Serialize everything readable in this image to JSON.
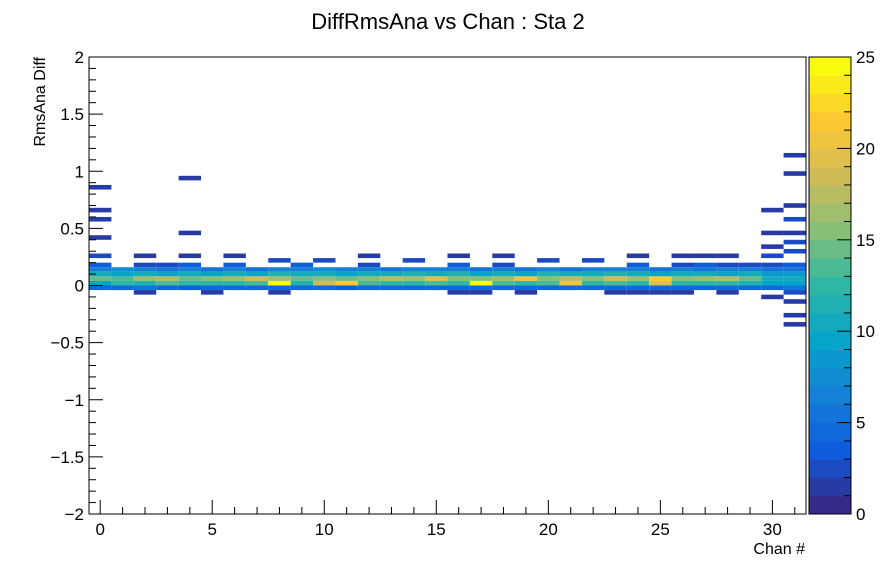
{
  "chart_data": {
    "type": "heatmap",
    "title": "DiffRmsAna vs Chan : Sta 2",
    "xlabel": "Chan #",
    "ylabel": "RmsAna Diff",
    "xlim": [
      -0.5,
      31.5
    ],
    "ylim": [
      -2,
      2
    ],
    "x_ticks": [
      0,
      5,
      10,
      15,
      20,
      25,
      30
    ],
    "y_ticks": [
      -2,
      -1.5,
      -1,
      -0.5,
      0,
      0.5,
      1,
      1.5,
      2
    ],
    "x_bin_width": 1,
    "y_bin_width": 0.04,
    "colorbar": {
      "min": 0,
      "max": 25,
      "ticks": [
        0,
        5,
        10,
        15,
        20,
        25
      ]
    },
    "grid": false,
    "bins": [
      {
        "x": 0,
        "y": 0.86,
        "z": 1
      },
      {
        "x": 0,
        "y": 0.66,
        "z": 1
      },
      {
        "x": 0,
        "y": 0.58,
        "z": 1
      },
      {
        "x": 0,
        "y": 0.42,
        "z": 1
      },
      {
        "x": 0,
        "y": 0.26,
        "z": 2
      },
      {
        "x": 0,
        "y": 0.18,
        "z": 3
      },
      {
        "x": 0,
        "y": 0.14,
        "z": 6
      },
      {
        "x": 0,
        "y": 0.1,
        "z": 10
      },
      {
        "x": 0,
        "y": 0.06,
        "z": 14
      },
      {
        "x": 0,
        "y": 0.02,
        "z": 9
      },
      {
        "x": 0,
        "y": -0.02,
        "z": 4
      },
      {
        "x": 1,
        "y": 0.14,
        "z": 7
      },
      {
        "x": 1,
        "y": 0.1,
        "z": 9
      },
      {
        "x": 1,
        "y": 0.06,
        "z": 13
      },
      {
        "x": 1,
        "y": 0.02,
        "z": 12
      },
      {
        "x": 1,
        "y": -0.02,
        "z": 4
      },
      {
        "x": 2,
        "y": 0.26,
        "z": 1
      },
      {
        "x": 2,
        "y": 0.18,
        "z": 2
      },
      {
        "x": 2,
        "y": 0.14,
        "z": 6
      },
      {
        "x": 2,
        "y": 0.1,
        "z": 10
      },
      {
        "x": 2,
        "y": 0.06,
        "z": 16
      },
      {
        "x": 2,
        "y": 0.02,
        "z": 11
      },
      {
        "x": 2,
        "y": -0.02,
        "z": 5
      },
      {
        "x": 2,
        "y": -0.06,
        "z": 1
      },
      {
        "x": 3,
        "y": 0.18,
        "z": 2
      },
      {
        "x": 3,
        "y": 0.14,
        "z": 5
      },
      {
        "x": 3,
        "y": 0.1,
        "z": 9
      },
      {
        "x": 3,
        "y": 0.06,
        "z": 17
      },
      {
        "x": 3,
        "y": 0.02,
        "z": 13
      },
      {
        "x": 3,
        "y": -0.02,
        "z": 4
      },
      {
        "x": 4,
        "y": 0.94,
        "z": 1
      },
      {
        "x": 4,
        "y": 0.46,
        "z": 1
      },
      {
        "x": 4,
        "y": 0.26,
        "z": 1
      },
      {
        "x": 4,
        "y": 0.18,
        "z": 3
      },
      {
        "x": 4,
        "y": 0.14,
        "z": 6
      },
      {
        "x": 4,
        "y": 0.1,
        "z": 10
      },
      {
        "x": 4,
        "y": 0.06,
        "z": 14
      },
      {
        "x": 4,
        "y": 0.02,
        "z": 12
      },
      {
        "x": 4,
        "y": -0.02,
        "z": 3
      },
      {
        "x": 5,
        "y": 0.14,
        "z": 5
      },
      {
        "x": 5,
        "y": 0.1,
        "z": 9
      },
      {
        "x": 5,
        "y": 0.06,
        "z": 15
      },
      {
        "x": 5,
        "y": 0.02,
        "z": 12
      },
      {
        "x": 5,
        "y": -0.02,
        "z": 4
      },
      {
        "x": 5,
        "y": -0.06,
        "z": 1
      },
      {
        "x": 6,
        "y": 0.26,
        "z": 1
      },
      {
        "x": 6,
        "y": 0.18,
        "z": 3
      },
      {
        "x": 6,
        "y": 0.14,
        "z": 6
      },
      {
        "x": 6,
        "y": 0.1,
        "z": 10
      },
      {
        "x": 6,
        "y": 0.06,
        "z": 16
      },
      {
        "x": 6,
        "y": 0.02,
        "z": 12
      },
      {
        "x": 6,
        "y": -0.02,
        "z": 4
      },
      {
        "x": 7,
        "y": 0.14,
        "z": 5
      },
      {
        "x": 7,
        "y": 0.1,
        "z": 9
      },
      {
        "x": 7,
        "y": 0.06,
        "z": 18
      },
      {
        "x": 7,
        "y": 0.02,
        "z": 13
      },
      {
        "x": 7,
        "y": -0.02,
        "z": 4
      },
      {
        "x": 8,
        "y": 0.22,
        "z": 2
      },
      {
        "x": 8,
        "y": 0.14,
        "z": 6
      },
      {
        "x": 8,
        "y": 0.1,
        "z": 11
      },
      {
        "x": 8,
        "y": 0.06,
        "z": 16
      },
      {
        "x": 8,
        "y": 0.02,
        "z": 25
      },
      {
        "x": 8,
        "y": -0.02,
        "z": 4
      },
      {
        "x": 8,
        "y": -0.06,
        "z": 1
      },
      {
        "x": 9,
        "y": 0.18,
        "z": 3
      },
      {
        "x": 9,
        "y": 0.14,
        "z": 6
      },
      {
        "x": 9,
        "y": 0.1,
        "z": 10
      },
      {
        "x": 9,
        "y": 0.06,
        "z": 14
      },
      {
        "x": 9,
        "y": 0.02,
        "z": 11
      },
      {
        "x": 9,
        "y": -0.02,
        "z": 4
      },
      {
        "x": 10,
        "y": 0.22,
        "z": 2
      },
      {
        "x": 10,
        "y": 0.14,
        "z": 7
      },
      {
        "x": 10,
        "y": 0.1,
        "z": 10
      },
      {
        "x": 10,
        "y": 0.06,
        "z": 15
      },
      {
        "x": 10,
        "y": 0.02,
        "z": 18
      },
      {
        "x": 10,
        "y": -0.02,
        "z": 4
      },
      {
        "x": 11,
        "y": 0.14,
        "z": 6
      },
      {
        "x": 11,
        "y": 0.1,
        "z": 9
      },
      {
        "x": 11,
        "y": 0.06,
        "z": 14
      },
      {
        "x": 11,
        "y": 0.02,
        "z": 21
      },
      {
        "x": 11,
        "y": -0.02,
        "z": 3
      },
      {
        "x": 12,
        "y": 0.26,
        "z": 1
      },
      {
        "x": 12,
        "y": 0.18,
        "z": 2
      },
      {
        "x": 12,
        "y": 0.14,
        "z": 6
      },
      {
        "x": 12,
        "y": 0.1,
        "z": 10
      },
      {
        "x": 12,
        "y": 0.06,
        "z": 15
      },
      {
        "x": 12,
        "y": 0.02,
        "z": 13
      },
      {
        "x": 12,
        "y": -0.02,
        "z": 4
      },
      {
        "x": 13,
        "y": 0.14,
        "z": 5
      },
      {
        "x": 13,
        "y": 0.1,
        "z": 10
      },
      {
        "x": 13,
        "y": 0.06,
        "z": 17
      },
      {
        "x": 13,
        "y": 0.02,
        "z": 12
      },
      {
        "x": 13,
        "y": -0.02,
        "z": 4
      },
      {
        "x": 14,
        "y": 0.22,
        "z": 2
      },
      {
        "x": 14,
        "y": 0.14,
        "z": 6
      },
      {
        "x": 14,
        "y": 0.1,
        "z": 11
      },
      {
        "x": 14,
        "y": 0.06,
        "z": 16
      },
      {
        "x": 14,
        "y": 0.02,
        "z": 12
      },
      {
        "x": 14,
        "y": -0.02,
        "z": 4
      },
      {
        "x": 15,
        "y": 0.14,
        "z": 6
      },
      {
        "x": 15,
        "y": 0.1,
        "z": 10
      },
      {
        "x": 15,
        "y": 0.06,
        "z": 19
      },
      {
        "x": 15,
        "y": 0.02,
        "z": 13
      },
      {
        "x": 15,
        "y": -0.02,
        "z": 4
      },
      {
        "x": 16,
        "y": 0.26,
        "z": 1
      },
      {
        "x": 16,
        "y": 0.18,
        "z": 3
      },
      {
        "x": 16,
        "y": 0.14,
        "z": 6
      },
      {
        "x": 16,
        "y": 0.1,
        "z": 11
      },
      {
        "x": 16,
        "y": 0.06,
        "z": 15
      },
      {
        "x": 16,
        "y": 0.02,
        "z": 12
      },
      {
        "x": 16,
        "y": -0.02,
        "z": 4
      },
      {
        "x": 16,
        "y": -0.06,
        "z": 1
      },
      {
        "x": 17,
        "y": 0.14,
        "z": 5
      },
      {
        "x": 17,
        "y": 0.1,
        "z": 9
      },
      {
        "x": 17,
        "y": 0.06,
        "z": 15
      },
      {
        "x": 17,
        "y": 0.02,
        "z": 25
      },
      {
        "x": 17,
        "y": -0.02,
        "z": 4
      },
      {
        "x": 17,
        "y": -0.06,
        "z": 1
      },
      {
        "x": 18,
        "y": 0.26,
        "z": 1
      },
      {
        "x": 18,
        "y": 0.18,
        "z": 2
      },
      {
        "x": 18,
        "y": 0.14,
        "z": 6
      },
      {
        "x": 18,
        "y": 0.1,
        "z": 10
      },
      {
        "x": 18,
        "y": 0.06,
        "z": 16
      },
      {
        "x": 18,
        "y": 0.02,
        "z": 13
      },
      {
        "x": 18,
        "y": -0.02,
        "z": 4
      },
      {
        "x": 19,
        "y": 0.14,
        "z": 5
      },
      {
        "x": 19,
        "y": 0.1,
        "z": 9
      },
      {
        "x": 19,
        "y": 0.06,
        "z": 20
      },
      {
        "x": 19,
        "y": 0.02,
        "z": 12
      },
      {
        "x": 19,
        "y": -0.02,
        "z": 4
      },
      {
        "x": 19,
        "y": -0.06,
        "z": 1
      },
      {
        "x": 20,
        "y": 0.22,
        "z": 2
      },
      {
        "x": 20,
        "y": 0.14,
        "z": 6
      },
      {
        "x": 20,
        "y": 0.1,
        "z": 11
      },
      {
        "x": 20,
        "y": 0.06,
        "z": 15
      },
      {
        "x": 20,
        "y": 0.02,
        "z": 13
      },
      {
        "x": 20,
        "y": -0.02,
        "z": 4
      },
      {
        "x": 21,
        "y": 0.14,
        "z": 5
      },
      {
        "x": 21,
        "y": 0.1,
        "z": 10
      },
      {
        "x": 21,
        "y": 0.06,
        "z": 17
      },
      {
        "x": 21,
        "y": 0.02,
        "z": 20
      },
      {
        "x": 21,
        "y": -0.02,
        "z": 4
      },
      {
        "x": 22,
        "y": 0.22,
        "z": 2
      },
      {
        "x": 22,
        "y": 0.14,
        "z": 6
      },
      {
        "x": 22,
        "y": 0.1,
        "z": 10
      },
      {
        "x": 22,
        "y": 0.06,
        "z": 15
      },
      {
        "x": 22,
        "y": 0.02,
        "z": 12
      },
      {
        "x": 22,
        "y": -0.02,
        "z": 4
      },
      {
        "x": 23,
        "y": 0.14,
        "z": 6
      },
      {
        "x": 23,
        "y": 0.1,
        "z": 11
      },
      {
        "x": 23,
        "y": 0.06,
        "z": 18
      },
      {
        "x": 23,
        "y": 0.02,
        "z": 13
      },
      {
        "x": 23,
        "y": -0.02,
        "z": 4
      },
      {
        "x": 23,
        "y": -0.06,
        "z": 1
      },
      {
        "x": 24,
        "y": 0.26,
        "z": 1
      },
      {
        "x": 24,
        "y": 0.18,
        "z": 3
      },
      {
        "x": 24,
        "y": 0.14,
        "z": 6
      },
      {
        "x": 24,
        "y": 0.1,
        "z": 10
      },
      {
        "x": 24,
        "y": 0.06,
        "z": 16
      },
      {
        "x": 24,
        "y": 0.02,
        "z": 12
      },
      {
        "x": 24,
        "y": -0.02,
        "z": 4
      },
      {
        "x": 24,
        "y": -0.06,
        "z": 1
      },
      {
        "x": 25,
        "y": 0.14,
        "z": 5
      },
      {
        "x": 25,
        "y": 0.1,
        "z": 9
      },
      {
        "x": 25,
        "y": 0.06,
        "z": 21
      },
      {
        "x": 25,
        "y": 0.02,
        "z": 19
      },
      {
        "x": 25,
        "y": -0.02,
        "z": 4
      },
      {
        "x": 25,
        "y": -0.06,
        "z": 1
      },
      {
        "x": 26,
        "y": 0.26,
        "z": 1
      },
      {
        "x": 26,
        "y": 0.18,
        "z": 2
      },
      {
        "x": 26,
        "y": 0.14,
        "z": 6
      },
      {
        "x": 26,
        "y": 0.1,
        "z": 10
      },
      {
        "x": 26,
        "y": 0.06,
        "z": 15
      },
      {
        "x": 26,
        "y": 0.02,
        "z": 12
      },
      {
        "x": 26,
        "y": -0.02,
        "z": 4
      },
      {
        "x": 26,
        "y": -0.06,
        "z": 1
      },
      {
        "x": 27,
        "y": 0.26,
        "z": 1
      },
      {
        "x": 27,
        "y": 0.18,
        "z": 3
      },
      {
        "x": 27,
        "y": 0.14,
        "z": 5
      },
      {
        "x": 27,
        "y": 0.1,
        "z": 10
      },
      {
        "x": 27,
        "y": 0.06,
        "z": 16
      },
      {
        "x": 27,
        "y": 0.02,
        "z": 12
      },
      {
        "x": 27,
        "y": -0.02,
        "z": 4
      },
      {
        "x": 28,
        "y": 0.26,
        "z": 1
      },
      {
        "x": 28,
        "y": 0.18,
        "z": 2
      },
      {
        "x": 28,
        "y": 0.14,
        "z": 6
      },
      {
        "x": 28,
        "y": 0.1,
        "z": 9
      },
      {
        "x": 28,
        "y": 0.06,
        "z": 17
      },
      {
        "x": 28,
        "y": 0.02,
        "z": 12
      },
      {
        "x": 28,
        "y": -0.02,
        "z": 4
      },
      {
        "x": 28,
        "y": -0.06,
        "z": 1
      },
      {
        "x": 29,
        "y": 0.18,
        "z": 2
      },
      {
        "x": 29,
        "y": 0.14,
        "z": 6
      },
      {
        "x": 29,
        "y": 0.1,
        "z": 10
      },
      {
        "x": 29,
        "y": 0.06,
        "z": 14
      },
      {
        "x": 29,
        "y": 0.02,
        "z": 11
      },
      {
        "x": 29,
        "y": -0.02,
        "z": 4
      },
      {
        "x": 30,
        "y": 0.66,
        "z": 1
      },
      {
        "x": 30,
        "y": 0.46,
        "z": 1
      },
      {
        "x": 30,
        "y": 0.34,
        "z": 1
      },
      {
        "x": 30,
        "y": 0.26,
        "z": 2
      },
      {
        "x": 30,
        "y": 0.18,
        "z": 2
      },
      {
        "x": 30,
        "y": 0.14,
        "z": 5
      },
      {
        "x": 30,
        "y": 0.1,
        "z": 8
      },
      {
        "x": 30,
        "y": 0.06,
        "z": 10
      },
      {
        "x": 30,
        "y": 0.02,
        "z": 9
      },
      {
        "x": 30,
        "y": -0.02,
        "z": 4
      },
      {
        "x": 30,
        "y": -0.1,
        "z": 1
      },
      {
        "x": 31,
        "y": 1.14,
        "z": 1
      },
      {
        "x": 31,
        "y": 0.98,
        "z": 1
      },
      {
        "x": 31,
        "y": 0.7,
        "z": 1
      },
      {
        "x": 31,
        "y": 0.58,
        "z": 2
      },
      {
        "x": 31,
        "y": 0.46,
        "z": 1
      },
      {
        "x": 31,
        "y": 0.38,
        "z": 2
      },
      {
        "x": 31,
        "y": 0.3,
        "z": 2
      },
      {
        "x": 31,
        "y": 0.18,
        "z": 3
      },
      {
        "x": 31,
        "y": 0.14,
        "z": 5
      },
      {
        "x": 31,
        "y": 0.1,
        "z": 8
      },
      {
        "x": 31,
        "y": 0.06,
        "z": 10
      },
      {
        "x": 31,
        "y": 0.02,
        "z": 9
      },
      {
        "x": 31,
        "y": -0.02,
        "z": 5
      },
      {
        "x": 31,
        "y": -0.06,
        "z": 2
      },
      {
        "x": 31,
        "y": -0.14,
        "z": 1
      },
      {
        "x": 31,
        "y": -0.26,
        "z": 1
      },
      {
        "x": 31,
        "y": -0.34,
        "z": 1
      }
    ]
  }
}
